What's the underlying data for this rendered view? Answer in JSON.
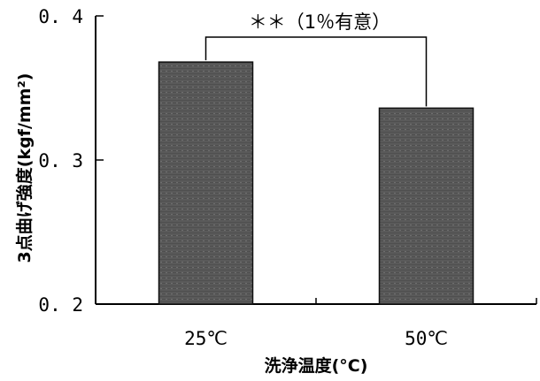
{
  "chart_data": {
    "type": "bar",
    "categories": [
      "25℃",
      "50℃"
    ],
    "values": [
      0.368,
      0.336
    ],
    "ylim": [
      0.2,
      0.4
    ],
    "yticks": [
      0.2,
      0.3,
      0.4
    ],
    "ytick_labels": [
      "0. 2",
      "0. 3",
      "0. 4"
    ],
    "xlabel": "洗浄温度(°C)",
    "ylabel": "3点曲げ強度(kgf/mm²)",
    "grid": false,
    "bar_color": "#555555",
    "annotation": {
      "text": "＊＊（1％有意）",
      "between": [
        "25℃",
        "50℃"
      ]
    }
  }
}
